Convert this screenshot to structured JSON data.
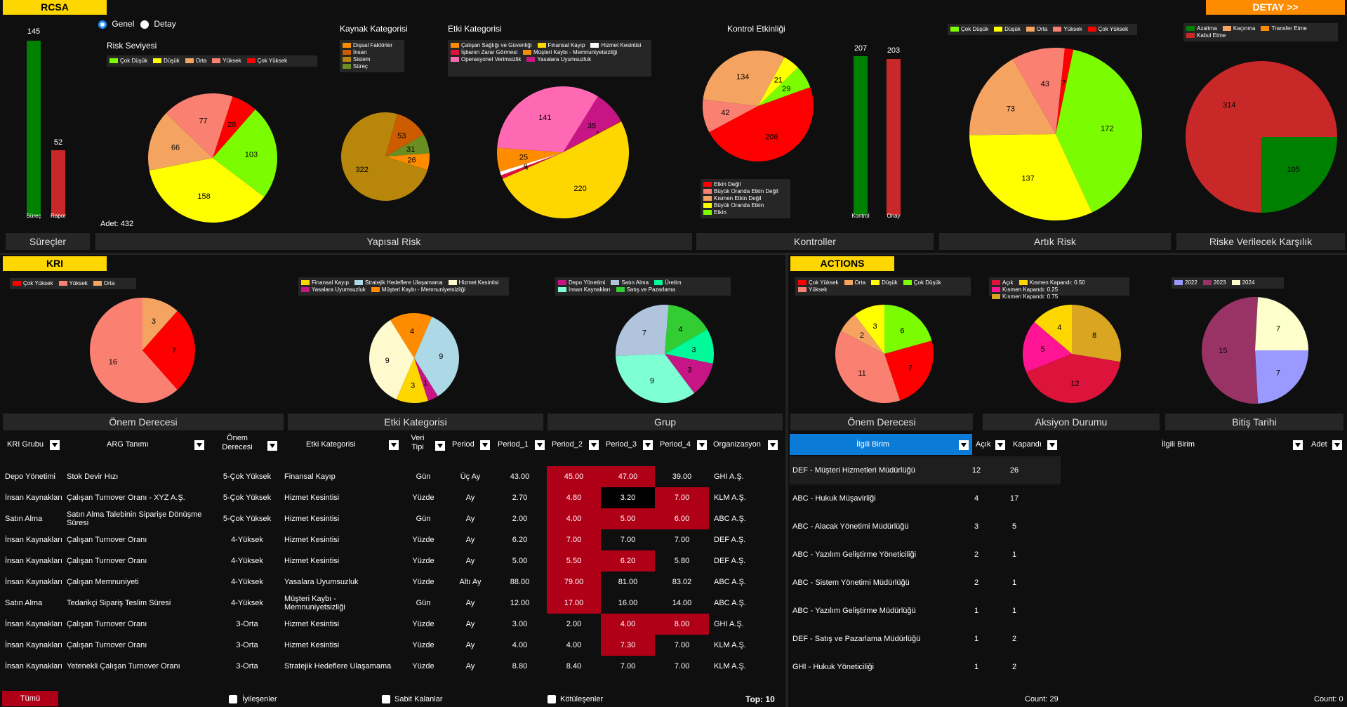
{
  "header": {
    "rcsa": "RCSA",
    "detay_button": "DETAY >>",
    "kri": "KRI",
    "actions": "ACTIONS"
  },
  "view_toggle": {
    "genel": "Genel",
    "detay": "Detay"
  },
  "surecler": {
    "bar1_value": "145",
    "bar1_label": "Süreç",
    "bar2_value": "52",
    "bar2_label": "Rapor",
    "adet": "Adet: 432"
  },
  "risk_seviyesi": {
    "title": "Risk Seviyesi",
    "legend": [
      {
        "label": "Çok Düşük",
        "color": "#7cfc00"
      },
      {
        "label": "Düşük",
        "color": "#ffff00"
      },
      {
        "label": "Orta",
        "color": "#f4a460"
      },
      {
        "label": "Yüksek",
        "color": "#fa8072"
      },
      {
        "label": "Çok Yüksek",
        "color": "#ff0000"
      }
    ],
    "slices": [
      {
        "label": "Çok Yüksek",
        "value": 28
      },
      {
        "label": "Çok Düşük",
        "value": 103
      },
      {
        "label": "Düşük",
        "value": 158
      },
      {
        "label": "Orta",
        "value": 66
      },
      {
        "label": "Yüksek",
        "value": 77
      }
    ]
  },
  "kaynak": {
    "title": "Kaynak Kategorisi",
    "legend": [
      {
        "label": "Dışsal Faktörler",
        "color": "#ff8c00"
      },
      {
        "label": "İnsan",
        "color": "#cd5c00"
      },
      {
        "label": "Sistem",
        "color": "#b8860b"
      },
      {
        "label": "Süreç",
        "color": "#6b8e23"
      }
    ],
    "slices": [
      {
        "label": "Süreç",
        "value": 31
      },
      {
        "label": "Dışsal",
        "value": 26
      },
      {
        "label": "Sistem",
        "value": 322
      },
      {
        "label": "İnsan",
        "value": 53
      }
    ]
  },
  "etki": {
    "title": "Etki Kategorisi",
    "legend": [
      {
        "label": "Çalışan Sağlığı ve Güvenliği",
        "color": "#ff8c00"
      },
      {
        "label": "Finansal Kayıp",
        "color": "#ffd700"
      },
      {
        "label": "Hizmet Kesintisi",
        "color": "#ffffff"
      },
      {
        "label": "İşbanın Zarar Görmesi",
        "color": "#dc143c"
      },
      {
        "label": "Müşteri Kaybı - Memnuniyetsizliği",
        "color": "#ff8c00"
      },
      {
        "label": "Operasyonel Verimsizlik",
        "color": "#ff69b4"
      },
      {
        "label": "Yasalara Uyumsuzluk",
        "color": "#c71585"
      }
    ],
    "slices": [
      {
        "label": "Yasalara Uyumsuzluk",
        "value": 35
      },
      {
        "label": "Other",
        "value": 1
      },
      {
        "label": "Finansal Kayıp",
        "value": 220
      },
      {
        "label": "İşbanın",
        "value": 4
      },
      {
        "label": "Hizmet",
        "value": 4
      },
      {
        "label": "Çalışan",
        "value": 25
      },
      {
        "label": "Operasyonel",
        "value": 141
      }
    ]
  },
  "kontrol": {
    "title": "Kontrol Etkinliği",
    "legend": [
      {
        "label": "Etkin Değil",
        "color": "#ff0000"
      },
      {
        "label": "Büyük Oranda Etkin Değil",
        "color": "#fa8072"
      },
      {
        "label": "Kısmen Etkin Değil",
        "color": "#f4a460"
      },
      {
        "label": "Büyük Oranda Etkin",
        "color": "#ffff00"
      },
      {
        "label": "Etkin",
        "color": "#7cfc00"
      }
    ],
    "slices": [
      {
        "label": "Etkin",
        "value": 29
      },
      {
        "label": "Etkin Değil",
        "value": 206
      },
      {
        "label": "Büyük Oranda Etkin Değil",
        "value": 42
      },
      {
        "label": "Kısmen Etkin Değil",
        "value": 134
      },
      {
        "label": "Büyük Oranda Etkin",
        "value": 21
      }
    ]
  },
  "kontroller": {
    "bar1_value": "207",
    "bar1_label": "Kontrol",
    "bar2_value": "203",
    "bar2_label": "Onay"
  },
  "artik": {
    "legend": [
      {
        "label": "Çok Düşük",
        "color": "#7cfc00"
      },
      {
        "label": "Düşük",
        "color": "#ffff00"
      },
      {
        "label": "Orta",
        "color": "#f4a460"
      },
      {
        "label": "Yüksek",
        "color": "#fa8072"
      },
      {
        "label": "Çok Yüksek",
        "color": "#ff0000"
      }
    ],
    "slices": [
      {
        "label": "Çok Yüksek",
        "value": 7
      },
      {
        "label": "Çok Düşük",
        "value": 172
      },
      {
        "label": "Düşük",
        "value": 137
      },
      {
        "label": "Orta",
        "value": 73
      },
      {
        "label": "Yüksek",
        "value": 43
      }
    ]
  },
  "karsilik": {
    "legend": [
      {
        "label": "Azaltma",
        "color": "#008000"
      },
      {
        "label": "Kaçınma",
        "color": "#f4a460"
      },
      {
        "label": "Transfer Etme",
        "color": "#ff8c00"
      },
      {
        "label": "Kabul Etme",
        "color": "#c82828"
      }
    ],
    "slices": [
      {
        "label": "Transfer",
        "value": 0
      },
      {
        "label": "Azaltma",
        "value": 105
      },
      {
        "label": "Kabul Etme",
        "value": 314
      }
    ]
  },
  "sections": {
    "surecler": "Süreçler",
    "yapisal": "Yapısal Risk",
    "kontroller": "Kontroller",
    "artik": "Artık Risk",
    "karsilik": "Riske Verilecek Karşılık",
    "onem": "Önem Derecesi",
    "etki": "Etki Kategorisi",
    "grup": "Grup",
    "onem2": "Önem Derecesi",
    "aksiyon": "Aksiyon Durumu",
    "bitis": "Bitiş Tarihi"
  },
  "kri_onem": {
    "legend": [
      {
        "label": "Çok Yüksek",
        "color": "#ff0000"
      },
      {
        "label": "Yüksek",
        "color": "#fa8072"
      },
      {
        "label": "Orta",
        "color": "#f4a460"
      }
    ],
    "slices": [
      {
        "label": "Orta",
        "value": 3
      },
      {
        "label": "Çok Yüksek",
        "value": 7
      },
      {
        "label": "Yüksek",
        "value": 16
      }
    ]
  },
  "kri_etki": {
    "legend": [
      {
        "label": "Finansal Kayıp",
        "color": "#ffd700"
      },
      {
        "label": "Stratejik Hedeflere Ulaşamama",
        "color": "#add8e6"
      },
      {
        "label": "Hizmet Kesintisi",
        "color": "#fffacd"
      },
      {
        "label": "Yasalara Uyumsuzluk",
        "color": "#c71585"
      },
      {
        "label": "Müşteri Kaybı - Memnuniyetsizliği",
        "color": "#ff8c00"
      }
    ],
    "slices": [
      {
        "label": "Yasalara",
        "value": 1
      },
      {
        "label": "Finansal",
        "value": 3
      },
      {
        "label": "Hizmet",
        "value": 9
      },
      {
        "label": "Müşteri",
        "value": 4
      },
      {
        "label": "Stratejik",
        "value": 9
      }
    ]
  },
  "kri_grup": {
    "legend": [
      {
        "label": "Depo Yönetimi",
        "color": "#c71585"
      },
      {
        "label": "Satın Alma",
        "color": "#b0c4de"
      },
      {
        "label": "Üretim",
        "color": "#00fa9a"
      },
      {
        "label": "İnsan Kaynakları",
        "color": "#7fffd4"
      },
      {
        "label": "Satış ve Pazarlama",
        "color": "#32cd32"
      }
    ],
    "slices": [
      {
        "label": "Üretim",
        "value": 3
      },
      {
        "label": "Depo",
        "value": 3
      },
      {
        "label": "İnsan",
        "value": 9
      },
      {
        "label": "Satın",
        "value": 7
      },
      {
        "label": "Satış",
        "value": 4
      }
    ]
  },
  "act_onem": {
    "legend": [
      {
        "label": "Çok Yüksek",
        "color": "#ff0000"
      },
      {
        "label": "Orta",
        "color": "#f4a460"
      },
      {
        "label": "Düşük",
        "color": "#ffff00"
      },
      {
        "label": "Çok Düşük",
        "color": "#7cfc00"
      },
      {
        "label": "Yüksek",
        "color": "#fa8072"
      }
    ],
    "slices": [
      {
        "label": "Çok Düşük",
        "value": 6
      },
      {
        "label": "Çok Yüksek",
        "value": 7
      },
      {
        "label": "Yüksek",
        "value": 11
      },
      {
        "label": "Orta",
        "value": 2
      },
      {
        "label": "Düşük",
        "value": 3
      }
    ]
  },
  "act_durum": {
    "legend": [
      {
        "label": "Açık",
        "color": "#dc143c"
      },
      {
        "label": "Kısmen Kapandı: 0.50",
        "color": "#ffd700"
      },
      {
        "label": "Kısmen Kapandı: 0.25",
        "color": "#ff1493"
      },
      {
        "label": "Kısmen Kapandı: 0.75",
        "color": "#daa520"
      }
    ],
    "slices": [
      {
        "label": "0.75",
        "value": 8
      },
      {
        "label": "Açık",
        "value": 12
      },
      {
        "label": "0.25",
        "value": 5
      },
      {
        "label": "0.50",
        "value": 4
      }
    ]
  },
  "act_bitis": {
    "legend": [
      {
        "label": "2022",
        "color": "#9999ff"
      },
      {
        "label": "2023",
        "color": "#993366"
      },
      {
        "label": "2024",
        "color": "#ffffcc"
      }
    ],
    "slices": [
      {
        "label": "2022",
        "value": 7
      },
      {
        "label": "2023",
        "value": 15
      },
      {
        "label": "2024",
        "value": 7
      }
    ]
  },
  "kri_table": {
    "headers": {
      "grup": "KRI Grubu",
      "arg": "ARG Tanımı",
      "onem": "Önem Derecesi",
      "etki": "Etki Kategorisi",
      "veri": "Veri Tipi",
      "period": "Period",
      "p1": "Period_1",
      "p2": "Period_2",
      "p3": "Period_3",
      "p4": "Period_4",
      "org": "Organizasyon"
    },
    "rows": [
      [
        "Depo Yönetimi",
        "Stok Devir Hızı",
        "5-Çok Yüksek",
        "Finansal Kayıp",
        "Gün",
        "Üç Ay",
        "43.00",
        "45.00",
        "47.00",
        "39.00",
        "GHI A.Ş."
      ],
      [
        "İnsan Kaynakları",
        "Çalışan Turnover Oranı - XYZ A.Ş.",
        "5-Çok Yüksek",
        "Hizmet Kesintisi",
        "Yüzde",
        "Ay",
        "2.70",
        "4.80",
        "3.20",
        "7.00",
        "KLM A.Ş."
      ],
      [
        "Satın Alma",
        "Satın Alma Talebinin Siparişe Dönüşme Süresi",
        "5-Çok Yüksek",
        "Hizmet Kesintisi",
        "Gün",
        "Ay",
        "2.00",
        "4.00",
        "5.00",
        "6.00",
        "ABC A.Ş."
      ],
      [
        "İnsan Kaynakları",
        "Çalışan Turnover Oranı",
        "4-Yüksek",
        "Hizmet Kesintisi",
        "Yüzde",
        "Ay",
        "6.20",
        "7.00",
        "7.00",
        "7.00",
        "DEF A.Ş."
      ],
      [
        "İnsan Kaynakları",
        "Çalışan Turnover Oranı",
        "4-Yüksek",
        "Hizmet Kesintisi",
        "Yüzde",
        "Ay",
        "5.00",
        "5.50",
        "6.20",
        "5.80",
        "DEF A.Ş."
      ],
      [
        "İnsan Kaynakları",
        "Çalışan Memnuniyeti",
        "4-Yüksek",
        "Yasalara Uyumsuzluk",
        "Yüzde",
        "Altı Ay",
        "88.00",
        "79.00",
        "81.00",
        "83.02",
        "ABC A.Ş."
      ],
      [
        "Satın Alma",
        "Tedarikçi Sipariş Teslim Süresi",
        "4-Yüksek",
        "Müşteri Kaybı - Memnuniyetsizliği",
        "Gün",
        "Ay",
        "12.00",
        "17.00",
        "16.00",
        "14.00",
        "ABC A.Ş."
      ],
      [
        "İnsan Kaynakları",
        "Çalışan Turnover Oranı",
        "3-Orta",
        "Hizmet Kesintisi",
        "Yüzde",
        "Ay",
        "3.00",
        "2.00",
        "4.00",
        "8.00",
        "GHI A.Ş."
      ],
      [
        "İnsan Kaynakları",
        "Çalışan Turnover Oranı",
        "3-Orta",
        "Hizmet Kesintisi",
        "Yüzde",
        "Ay",
        "4.00",
        "4.00",
        "7.30",
        "7.00",
        "KLM A.Ş."
      ],
      [
        "İnsan Kaynakları",
        "Yetenekli Çalışan Turnover Oranı",
        "3-Orta",
        "Stratejik Hedeflere Ulaşamama",
        "Yüzde",
        "Ay",
        "8.80",
        "8.40",
        "7.00",
        "7.00",
        "KLM A.Ş."
      ]
    ],
    "red_cells": [
      [
        0,
        7
      ],
      [
        0,
        8
      ],
      [
        1,
        7
      ],
      [
        1,
        9
      ],
      [
        2,
        7
      ],
      [
        2,
        8
      ],
      [
        2,
        9
      ],
      [
        3,
        7
      ],
      [
        4,
        7
      ],
      [
        4,
        8
      ],
      [
        5,
        7
      ],
      [
        6,
        7
      ],
      [
        7,
        8
      ],
      [
        7,
        9
      ],
      [
        8,
        8
      ]
    ],
    "black_cells": [
      [
        1,
        8
      ]
    ]
  },
  "footer": {
    "tumu": "Tümü",
    "iyilesenler": "İyileşenler",
    "sabit": "Sabit Kalanlar",
    "kotulesenler": "Kötüleşenler",
    "top": "Top: 10"
  },
  "birim_table": {
    "headers": {
      "birim": "İlgili Birim",
      "acik": "Açık",
      "kapandi": "Kapandı"
    },
    "rows": [
      [
        "DEF - Müşteri Hizmetleri Müdürlüğü",
        "12",
        "26"
      ],
      [
        "ABC - Hukuk Müşavirliği",
        "4",
        "17"
      ],
      [
        "ABC - Alacak Yönetimi Müdürlüğü",
        "3",
        "5"
      ],
      [
        "ABC - Yazılım Geliştirme Yöneticiliği",
        "2",
        "1"
      ],
      [
        "ABC - Sistem Yönetimi Müdürlüğü",
        "2",
        "1"
      ],
      [
        "ABC - Yazılım Geliştirme Müdürlüğü",
        "1",
        "1"
      ],
      [
        "DEF - Satış ve Pazarlama Müdürlüğü",
        "1",
        "2"
      ],
      [
        "GHI - Hukuk Yöneticiliği",
        "1",
        "2"
      ]
    ],
    "count": "Count: 29"
  },
  "birim_adet": {
    "headers": {
      "birim": "İlgili Birim",
      "adet": "Adet"
    },
    "count": "Count: 0"
  }
}
